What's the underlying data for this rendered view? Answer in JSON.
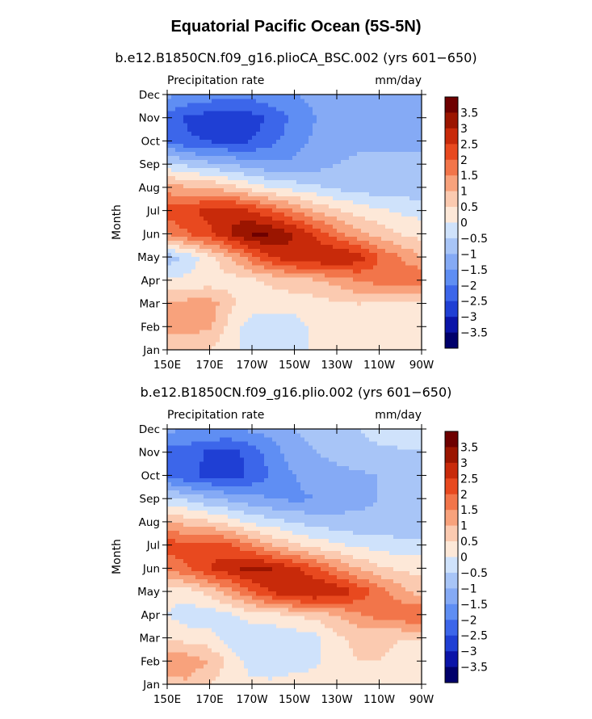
{
  "figure_title": "Equatorial Pacific Ocean (5S-5N)",
  "colors": {
    "levels": [
      "#00006b",
      "#0a14a8",
      "#1f3fd4",
      "#3c66ea",
      "#5f8ef3",
      "#85aaf5",
      "#a8c5f7",
      "#cfe2fb",
      "#fde8d8",
      "#fbcab0",
      "#f8a27c",
      "#f2754a",
      "#e8491f",
      "#c82a0a",
      "#9b1500",
      "#6e0000"
    ],
    "boundaries": [
      -3.5,
      -3,
      -2.5,
      -2,
      -1.5,
      -1,
      -0.5,
      0,
      0.5,
      1,
      1.5,
      2,
      2.5,
      3,
      3.5
    ]
  },
  "colorbar_labels": [
    "3.5",
    "3",
    "2.5",
    "2",
    "1.5",
    "1",
    "0.5",
    "0",
    "−0.5",
    "−1",
    "−1.5",
    "−2",
    "−2.5",
    "−3",
    "−3.5"
  ],
  "chart_data": [
    {
      "type": "heatmap",
      "title": "b.e12.B1850CN.f09_g16.plioCA_BSC.002 (yrs 601−650)",
      "variable": "Precipitation rate",
      "units": "mm/day",
      "ylabel": "Month",
      "x_ticks": [
        "150E",
        "170E",
        "170W",
        "150W",
        "130W",
        "110W",
        "90W"
      ],
      "y_ticks": [
        "Jan",
        "Feb",
        "Mar",
        "Apr",
        "May",
        "Jun",
        "Jul",
        "Aug",
        "Sep",
        "Oct",
        "Nov",
        "Dec"
      ],
      "x_lon": [
        150,
        160,
        170,
        180,
        190,
        200,
        210,
        220,
        230,
        240,
        250,
        260,
        270
      ],
      "values": [
        [
          0.6,
          0.8,
          0.5,
          0.1,
          -0.2,
          -0.3,
          -0.2,
          0.1,
          0.3,
          0.3,
          0.2,
          0.1,
          0.1
        ],
        [
          1.2,
          1.1,
          1.1,
          0.3,
          -0.3,
          -0.4,
          -0.3,
          0.2,
          0.4,
          0.4,
          0.3,
          0.2,
          0.2
        ],
        [
          1.1,
          1.2,
          1.3,
          0.6,
          0.3,
          0.3,
          0.3,
          0.3,
          0.4,
          0.5,
          0.4,
          0.3,
          0.2
        ],
        [
          0.2,
          0.1,
          0.2,
          0.3,
          0.4,
          0.6,
          0.7,
          0.9,
          1.2,
          1.5,
          1.7,
          2.0,
          2.0
        ],
        [
          -0.8,
          -0.3,
          0.3,
          1.0,
          1.8,
          2.5,
          2.9,
          3.0,
          3.0,
          2.8,
          2.0,
          1.5,
          1.0
        ],
        [
          1.5,
          2.0,
          2.4,
          3.0,
          3.6,
          3.5,
          3.0,
          2.4,
          1.7,
          1.2,
          0.8,
          0.5,
          0.3
        ],
        [
          2.3,
          2.4,
          2.7,
          2.9,
          2.5,
          2.0,
          1.5,
          1.0,
          0.6,
          0.3,
          0.1,
          -0.1,
          -0.2
        ],
        [
          1.2,
          1.1,
          1.0,
          0.7,
          0.3,
          0.0,
          -0.2,
          -0.4,
          -0.6,
          -0.7,
          -0.8,
          -0.8,
          -0.8
        ],
        [
          -0.3,
          -0.6,
          -0.8,
          -1.0,
          -1.2,
          -1.4,
          -1.4,
          -1.2,
          -1.0,
          -0.9,
          -0.9,
          -0.9,
          -0.9
        ],
        [
          -2.0,
          -2.4,
          -2.5,
          -2.6,
          -2.5,
          -2.1,
          -1.7,
          -1.4,
          -1.2,
          -1.1,
          -1.1,
          -1.1,
          -1.1
        ],
        [
          -2.2,
          -2.6,
          -2.8,
          -2.9,
          -2.7,
          -2.4,
          -1.8,
          -1.5,
          -1.3,
          -1.2,
          -1.2,
          -1.2,
          -1.2
        ],
        [
          -1.4,
          -1.6,
          -1.7,
          -1.8,
          -1.8,
          -1.6,
          -1.5,
          -1.4,
          -1.3,
          -1.2,
          -1.1,
          -1.0,
          -1.0
        ]
      ]
    },
    {
      "type": "heatmap",
      "title": "b.e12.B1850CN.f09_g16.plio.002 (yrs 601−650)",
      "variable": "Precipitation rate",
      "units": "mm/day",
      "ylabel": "Month",
      "x_ticks": [
        "150E",
        "170E",
        "170W",
        "150W",
        "130W",
        "110W",
        "90W"
      ],
      "y_ticks": [
        "Jan",
        "Feb",
        "Mar",
        "Apr",
        "May",
        "Jun",
        "Jul",
        "Aug",
        "Sep",
        "Oct",
        "Nov",
        "Dec"
      ],
      "x_lon": [
        150,
        160,
        170,
        180,
        190,
        200,
        210,
        220,
        230,
        240,
        250,
        260,
        270
      ],
      "values": [
        [
          0.8,
          0.9,
          0.5,
          0.2,
          0.1,
          0.1,
          0.2,
          0.2,
          0.3,
          0.4,
          0.4,
          0.4,
          0.4
        ],
        [
          1.5,
          1.3,
          1.0,
          0.3,
          -0.2,
          -0.3,
          -0.2,
          -0.1,
          0.4,
          0.5,
          0.5,
          0.4,
          0.4
        ],
        [
          0.4,
          0.3,
          0.2,
          -0.3,
          -0.4,
          -0.4,
          -0.3,
          -0.2,
          0.4,
          0.6,
          0.6,
          0.5,
          0.5
        ],
        [
          0.0,
          -0.3,
          -0.3,
          -0.1,
          0.2,
          0.3,
          0.5,
          0.7,
          1.0,
          1.4,
          1.7,
          1.9,
          2.0
        ],
        [
          0.1,
          0.3,
          0.7,
          1.3,
          2.0,
          2.6,
          3.0,
          3.1,
          2.9,
          2.4,
          1.8,
          1.2,
          0.8
        ],
        [
          1.6,
          2.0,
          2.5,
          2.9,
          3.2,
          3.0,
          2.6,
          2.1,
          1.5,
          1.0,
          0.6,
          0.4,
          0.3
        ],
        [
          2.3,
          2.2,
          2.3,
          2.1,
          1.5,
          1.0,
          0.6,
          0.3,
          0.1,
          -0.1,
          -0.2,
          -0.3,
          -0.3
        ],
        [
          1.0,
          0.8,
          0.6,
          0.3,
          -0.1,
          -0.3,
          -0.5,
          -0.7,
          -0.8,
          -0.9,
          -0.9,
          -0.9,
          -0.9
        ],
        [
          -0.3,
          -0.6,
          -0.9,
          -1.1,
          -1.3,
          -1.5,
          -1.6,
          -1.5,
          -1.3,
          -1.1,
          -1.0,
          -1.0,
          -1.0
        ],
        [
          -2.1,
          -2.4,
          -2.6,
          -2.7,
          -2.4,
          -1.9,
          -1.5,
          -1.3,
          -1.2,
          -1.1,
          -1.0,
          -1.0,
          -0.9
        ],
        [
          -2.2,
          -2.3,
          -2.6,
          -2.7,
          -2.3,
          -1.7,
          -1.2,
          -1.0,
          -0.8,
          -0.7,
          -0.6,
          -0.6,
          -0.6
        ],
        [
          -1.4,
          -1.5,
          -1.5,
          -1.5,
          -1.4,
          -1.3,
          -1.0,
          -0.8,
          -0.6,
          -0.5,
          -0.3,
          -0.1,
          0.0
        ]
      ]
    }
  ]
}
